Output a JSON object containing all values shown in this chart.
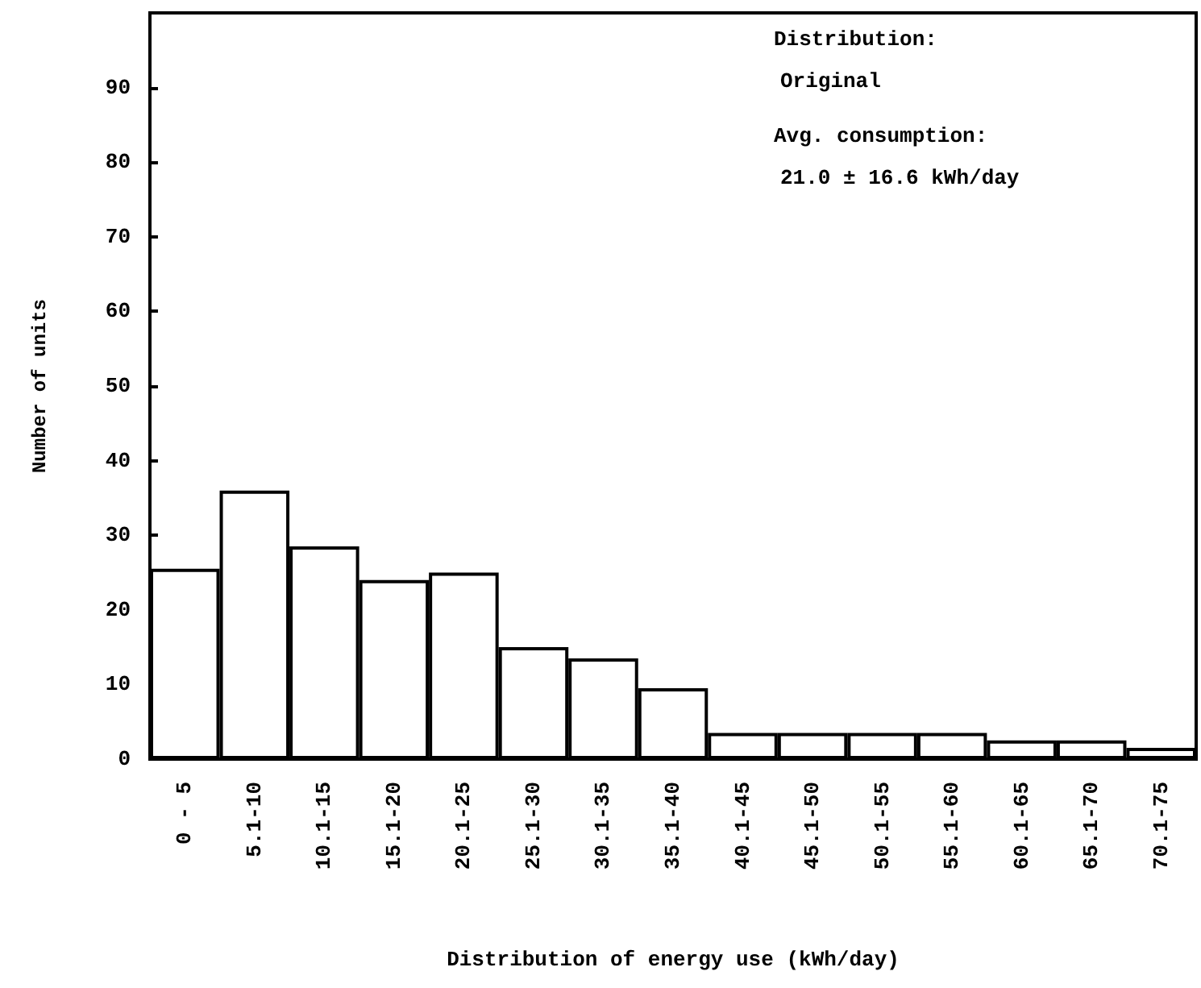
{
  "chart_data": {
    "type": "bar",
    "xlabel": "Distribution of energy use (kWh/day)",
    "ylabel": "Number of units",
    "categories": [
      "0 - 5",
      "5.1-10",
      "10.1-15",
      "15.1-20",
      "20.1-25",
      "25.1-30",
      "30.1-35",
      "35.1-40",
      "40.1-45",
      "45.1-50",
      "50.1-55",
      "55.1-60",
      "60.1-65",
      "65.1-70",
      "70.1-75"
    ],
    "values": [
      25.5,
      36,
      28.5,
      24,
      25,
      15,
      13.5,
      9.5,
      3.5,
      3.5,
      3.5,
      3.5,
      2.5,
      2.5,
      1.5
    ],
    "color": "#ffffff",
    "ylim": [
      0,
      100
    ],
    "yticks": [
      0,
      10,
      20,
      30,
      40,
      50,
      60,
      70,
      80,
      90
    ],
    "annotations": [
      "Distribution:",
      "Original",
      "Avg. consumption:",
      "21.0 ± 16.6 kWh/day"
    ],
    "grid": false
  }
}
